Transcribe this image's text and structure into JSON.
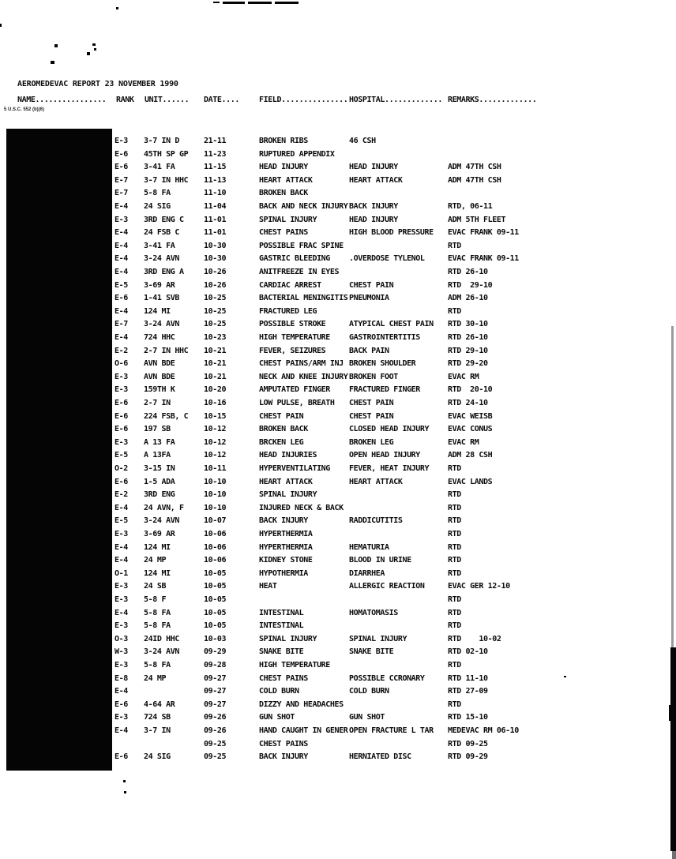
{
  "page": {
    "title": "AEROMEDEVAC REPORT 23 NOVEMBER 1990",
    "footnote": "5 U.S.C. 552 (b)(6)",
    "header": {
      "name": "NAME................",
      "rank": "RANK",
      "unit": "UNIT......",
      "date": "DATE....",
      "field": "FIELD...............",
      "hospital": "HOSPITAL.............",
      "remarks": "REMARKS............."
    }
  },
  "table": {
    "rows": [
      {
        "rank": "E-3",
        "unit": "3-7 IN D",
        "date": "21-11",
        "field": "BROKEN RIBS",
        "hospital": "46 CSH",
        "remarks": ""
      },
      {
        "rank": "E-6",
        "unit": "45TH SP GP",
        "date": "11-23",
        "field": "RUPTURED APPENDIX",
        "hospital": "",
        "remarks": ""
      },
      {
        "rank": "E-6",
        "unit": "3-41 FA",
        "date": "11-15",
        "field": "HEAD INJURY",
        "hospital": "HEAD INJURY",
        "remarks": "ADM 47TH CSH"
      },
      {
        "rank": "E-7",
        "unit": "3-7 IN HHC",
        "date": "11-13",
        "field": "HEART ATTACK",
        "hospital": "HEART ATTACK",
        "remarks": "ADM 47TH CSH"
      },
      {
        "rank": "E-7",
        "unit": "5-8 FA",
        "date": "11-10",
        "field": "BROKEN BACK",
        "hospital": "",
        "remarks": ""
      },
      {
        "rank": "E-4",
        "unit": "24 SIG",
        "date": "11-04",
        "field": "BACK AND NECK INJURY",
        "hospital": "BACK INJURY",
        "remarks": "RTD, 06-11"
      },
      {
        "rank": "E-3",
        "unit": "3RD ENG C",
        "date": "11-01",
        "field": "SPINAL INJURY",
        "hospital": "HEAD INJURY",
        "remarks": "ADM 5TH FLEET"
      },
      {
        "rank": "E-4",
        "unit": "24 FSB C",
        "date": "11-01",
        "field": "CHEST PAINS",
        "hospital": "HIGH BLOOD PRESSURE",
        "remarks": "EVAC FRANK 09-11"
      },
      {
        "rank": "E-4",
        "unit": "3-41 FA",
        "date": "10-30",
        "field": "POSSIBLE FRAC SPINE",
        "hospital": "",
        "remarks": "RTD"
      },
      {
        "rank": "E-4",
        "unit": "3-24 AVN",
        "date": "10-30",
        "field": "GASTRIC BLEEDING",
        "hospital": ".OVERDOSE TYLENOL",
        "remarks": "EVAC FRANK 09-11"
      },
      {
        "rank": "E-4",
        "unit": "3RD ENG A",
        "date": "10-26",
        "field": "ANITFREEZE IN EYES",
        "hospital": "",
        "remarks": "RTD 26-10"
      },
      {
        "rank": "E-5",
        "unit": "3-69 AR",
        "date": "10-26",
        "field": "CARDIAC ARREST",
        "hospital": "CHEST PAIN",
        "remarks": "RTD  29-10"
      },
      {
        "rank": "E-6",
        "unit": "1-41 SVB",
        "date": "10-25",
        "field": "BACTERIAL MENINGITIS",
        "hospital": "PNEUMONIA",
        "remarks": "ADM 26-10"
      },
      {
        "rank": "E-4",
        "unit": "124 MI",
        "date": "10-25",
        "field": "FRACTURED LEG",
        "hospital": "",
        "remarks": "RTD"
      },
      {
        "rank": "E-7",
        "unit": "3-24 AVN",
        "date": "10-25",
        "field": "POSSIBLE STROKE",
        "hospital": "ATYPICAL CHEST PAIN",
        "remarks": "RTD 30-10"
      },
      {
        "rank": "E-4",
        "unit": "724 HHC",
        "date": "10-23",
        "field": "HIGH TEMPERATURE",
        "hospital": "GASTROINTERTITIS",
        "remarks": "RTD 26-10"
      },
      {
        "rank": "E-2",
        "unit": "2-7 IN HHC",
        "date": "10-21",
        "field": "FEVER, SEIZURES",
        "hospital": "BACK PAIN",
        "remarks": "RTD 29-10"
      },
      {
        "rank": "O-6",
        "unit": "AVN BDE",
        "date": "10-21",
        "field": "CHEST PAINS/ARM INJ",
        "hospital": "BROKEN SHOULDER",
        "remarks": "RTD 29-20"
      },
      {
        "rank": "E-3",
        "unit": "AVN BDE",
        "date": "10-21",
        "field": "NECK AND KNEE INJURY",
        "hospital": "BROKEN FOOT",
        "remarks": "EVAC RM"
      },
      {
        "rank": "E-3",
        "unit": "159TH K",
        "date": "10-20",
        "field": "AMPUTATED FINGER",
        "hospital": "FRACTURED FINGER",
        "remarks": "RTD  20-10"
      },
      {
        "rank": "E-6",
        "unit": "2-7 IN",
        "date": "10-16",
        "field": "LOW PULSE, BREATH",
        "hospital": "CHEST PAIN",
        "remarks": "RTD 24-10"
      },
      {
        "rank": "E-6",
        "unit": "224 FSB, C",
        "date": "10-15",
        "field": "CHEST PAIN",
        "hospital": "CHEST PAIN",
        "remarks": "EVAC WEISB"
      },
      {
        "rank": "E-6",
        "unit": "197 SB",
        "date": "10-12",
        "field": "BROKEN BACK",
        "hospital": "CLOSED HEAD INJURY",
        "remarks": "EVAC CONUS"
      },
      {
        "rank": "E-3",
        "unit": "A 13 FA",
        "date": "10-12",
        "field": "BRCKEN LEG",
        "hospital": "BROKEN LEG",
        "remarks": "EVAC RM"
      },
      {
        "rank": "E-5",
        "unit": "A 13FA",
        "date": "10-12",
        "field": "HEAD INJURIES",
        "hospital": "OPEN HEAD INJURY",
        "remarks": "ADM 28 CSH"
      },
      {
        "rank": "O-2",
        "unit": "3-15 IN",
        "date": "10-11",
        "field": "HYPERVENTILATING",
        "hospital": "FEVER, HEAT INJURY",
        "remarks": "RTD"
      },
      {
        "rank": "E-6",
        "unit": "1-5 ADA",
        "date": "10-10",
        "field": "HEART ATTACK",
        "hospital": "HEART ATTACK",
        "remarks": "EVAC LANDS"
      },
      {
        "rank": "E-2",
        "unit": "3RD ENG",
        "date": "10-10",
        "field": "SPINAL INJURY",
        "hospital": "",
        "remarks": "RTD"
      },
      {
        "rank": "E-4",
        "unit": "24 AVN, F",
        "date": "10-10",
        "field": "INJURED NECK & BACK",
        "hospital": "",
        "remarks": "RTD"
      },
      {
        "rank": "E-5",
        "unit": "3-24 AVN",
        "date": "10-07",
        "field": "BACK INJURY",
        "hospital": "RADDICUTITIS",
        "remarks": "RTD"
      },
      {
        "rank": "E-3",
        "unit": "3-69 AR",
        "date": "10-06",
        "field": "HYPERTHERMIA",
        "hospital": "",
        "remarks": "RTD"
      },
      {
        "rank": "E-4",
        "unit": "124 MI",
        "date": "10-06",
        "field": "HYPERTHERMIA",
        "hospital": "HEMATURIA",
        "remarks": "RTD"
      },
      {
        "rank": "E-4",
        "unit": "24 MP",
        "date": "10-06",
        "field": "KIDNEY STONE",
        "hospital": "BLOOD IN URINE",
        "remarks": "RTD"
      },
      {
        "rank": "O-1",
        "unit": "124 MI",
        "date": "10-05",
        "field": "HYPOTHERMIA",
        "hospital": "DIARRHEA",
        "remarks": "RTD"
      },
      {
        "rank": "E-3",
        "unit": "24 SB",
        "date": "10-05",
        "field": "HEAT",
        "hospital": "ALLERGIC REACTION",
        "remarks": "EVAC GER 12-10"
      },
      {
        "rank": "E-3",
        "unit": "5-8 F",
        "date": "10-05",
        "field": "",
        "hospital": "",
        "remarks": "RTD"
      },
      {
        "rank": "E-4",
        "unit": "5-8 FA",
        "date": "10-05",
        "field": "INTESTINAL",
        "hospital": "HOMATOMASIS",
        "remarks": "RTD"
      },
      {
        "rank": "E-3",
        "unit": "5-8 FA",
        "date": "10-05",
        "field": "INTESTINAL",
        "hospital": "",
        "remarks": "RTD"
      },
      {
        "rank": "O-3",
        "unit": "24ID HHC",
        "date": "10-03",
        "field": "SPINAL INJURY",
        "hospital": "SPINAL INJURY",
        "remarks": "RTD    10-02"
      },
      {
        "rank": "W-3",
        "unit": "3-24 AVN",
        "date": "09-29",
        "field": "SNAKE BITE",
        "hospital": "SNAKE BITE",
        "remarks": "RTD 02-10"
      },
      {
        "rank": "E-3",
        "unit": "5-8 FA",
        "date": "09-28",
        "field": "HIGH TEMPERATURE",
        "hospital": "",
        "remarks": "RTD"
      },
      {
        "rank": "E-8",
        "unit": "24 MP",
        "date": "09-27",
        "field": "CHEST PAINS",
        "hospital": "POSSIBLE CCRONARY",
        "remarks": "RTD 11-10"
      },
      {
        "rank": "E-4",
        "unit": "",
        "date": "09-27",
        "field": "COLD BURN",
        "hospital": "COLD BURN",
        "remarks": "RTD 27-09"
      },
      {
        "rank": "E-6",
        "unit": "4-64 AR",
        "date": "09-27",
        "field": "DIZZY AND HEADACHES",
        "hospital": "",
        "remarks": "RTD"
      },
      {
        "rank": "E-3",
        "unit": "724 SB",
        "date": "09-26",
        "field": "GUN SHOT",
        "hospital": "GUN SHOT",
        "remarks": "RTD 15-10"
      },
      {
        "rank": "E-4",
        "unit": "3-7 IN",
        "date": "09-26",
        "field": "HAND CAUGHT IN GENER",
        "hospital": "OPEN FRACTURE L TAR",
        "remarks": "MEDEVAC RM 06-10"
      },
      {
        "rank": "",
        "unit": "",
        "date": "09-25",
        "field": "CHEST PAINS",
        "hospital": "",
        "remarks": "RTD 09-25"
      },
      {
        "rank": "E-6",
        "unit": "24 SIG",
        "date": "09-25",
        "field": "BACK INJURY",
        "hospital": "HERNIATED DISC",
        "remarks": "RTD 09-29"
      }
    ]
  }
}
